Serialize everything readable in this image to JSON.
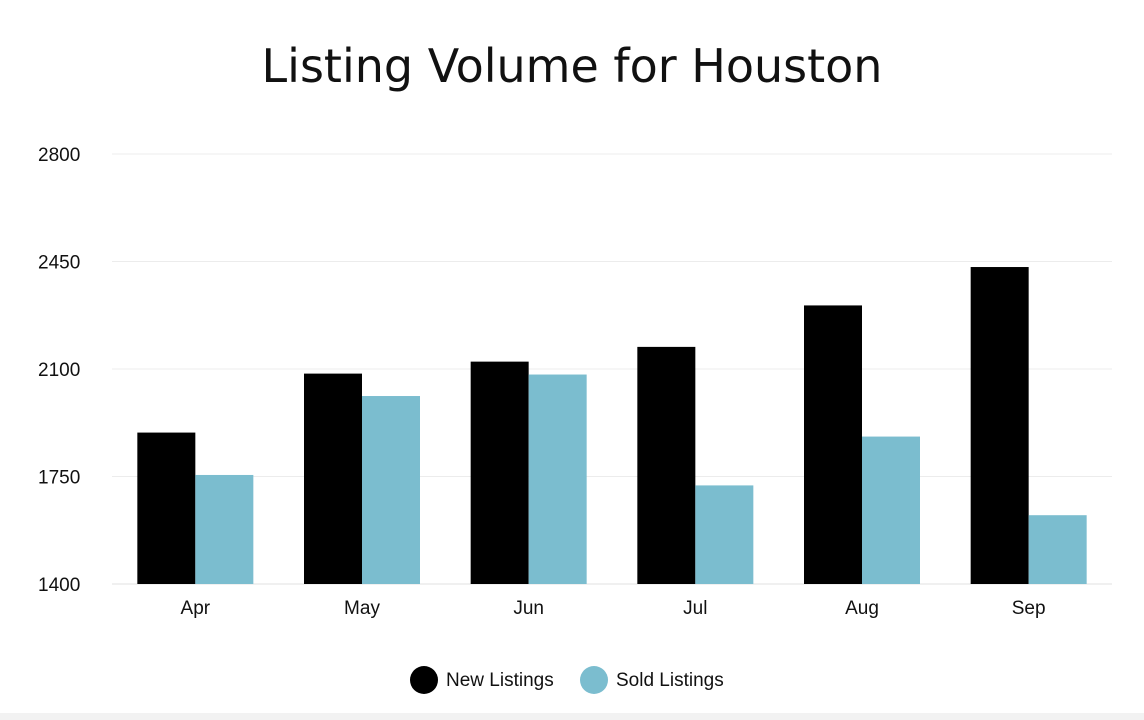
{
  "chart_data": {
    "type": "bar",
    "title": "Listing Volume for Houston",
    "xlabel": "",
    "ylabel": "",
    "categories": [
      "Apr",
      "May",
      "Jun",
      "Jul",
      "Aug",
      "Sep"
    ],
    "series": [
      {
        "name": "New Listings",
        "color": "#000000",
        "values": [
          1893,
          2085,
          2124,
          2172,
          2307,
          2432
        ]
      },
      {
        "name": "Sold Listings",
        "color": "#7bbdcf",
        "values": [
          1755,
          2012,
          2082,
          1721,
          1880,
          1624
        ]
      }
    ],
    "ylim": [
      1400,
      2800
    ],
    "y_ticks": [
      "1400",
      "1750",
      "2100",
      "2450",
      "2800"
    ],
    "grid": true,
    "legend_position": "bottom-center"
  }
}
